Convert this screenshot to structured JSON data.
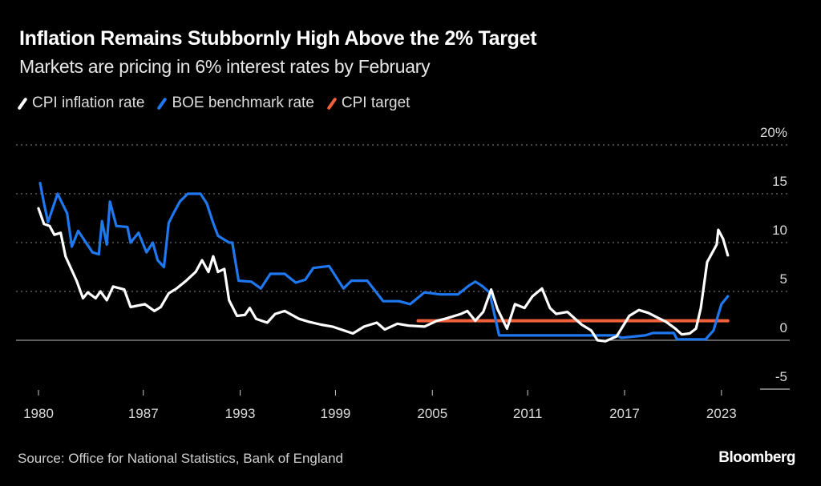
{
  "title": "Inflation Remains Stubbornly High Above the 2% Target",
  "subtitle": "Markets are pricing in 6% interest rates by February",
  "source": "Source: Office for National Statistics, Bank of England",
  "brand": "Bloomberg",
  "colors": {
    "cpi": "#ffffff",
    "boe": "#1f78f0",
    "target": "#f0603a",
    "background": "#000000",
    "grid": "#8a8a8a"
  },
  "chart_data": {
    "type": "line",
    "title": "Inflation Remains Stubbornly High Above the 2% Target",
    "subtitle": "Markets are pricing in 6% interest rates by February",
    "xlabel": "",
    "ylabel": "",
    "xlim": [
      1979.8,
      2023.6
    ],
    "ylim": [
      -5,
      20
    ],
    "grid": true,
    "legend_position": "top-left",
    "x_ticks": [
      {
        "value": 1980,
        "label": "1980"
      },
      {
        "value": 1986.6,
        "label": "1987"
      },
      {
        "value": 1992.7,
        "label": "1993"
      },
      {
        "value": 1998.7,
        "label": "1999"
      },
      {
        "value": 2004.8,
        "label": "2005"
      },
      {
        "value": 2010.8,
        "label": "2011"
      },
      {
        "value": 2016.9,
        "label": "2017"
      },
      {
        "value": 2023,
        "label": "2023"
      }
    ],
    "y_ticks": [
      {
        "value": 20,
        "label": "20%"
      },
      {
        "value": 15,
        "label": "15"
      },
      {
        "value": 10,
        "label": "10"
      },
      {
        "value": 5,
        "label": "5"
      },
      {
        "value": 0,
        "label": "0"
      },
      {
        "value": -5,
        "label": "-5"
      }
    ],
    "series": [
      {
        "name": "CPI inflation rate",
        "color": "#ffffff",
        "points": [
          [
            1980.0,
            13.5
          ],
          [
            1980.35,
            11.9
          ],
          [
            1980.7,
            11.7
          ],
          [
            1981.0,
            10.8
          ],
          [
            1981.4,
            11
          ],
          [
            1981.7,
            8.6
          ],
          [
            1982.4,
            6.1
          ],
          [
            1982.8,
            4.3
          ],
          [
            1983.1,
            4.9
          ],
          [
            1983.6,
            4.3
          ],
          [
            1983.9,
            5
          ],
          [
            1984.3,
            4.1
          ],
          [
            1984.7,
            5.5
          ],
          [
            1985.4,
            5.2
          ],
          [
            1985.8,
            3.4
          ],
          [
            1986.7,
            3.7
          ],
          [
            1987.3,
            3
          ],
          [
            1987.7,
            3.4
          ],
          [
            1988.2,
            4.8
          ],
          [
            1988.7,
            5.3
          ],
          [
            1989.3,
            6.1
          ],
          [
            1989.9,
            7
          ],
          [
            1990.3,
            8.2
          ],
          [
            1990.7,
            7
          ],
          [
            1991.0,
            8.6
          ],
          [
            1991.3,
            7
          ],
          [
            1991.7,
            7.3
          ],
          [
            1992.0,
            4.1
          ],
          [
            1992.5,
            2.5
          ],
          [
            1993.0,
            2.6
          ],
          [
            1993.3,
            3.3
          ],
          [
            1993.7,
            2.2
          ],
          [
            1994.4,
            1.8
          ],
          [
            1994.9,
            2.7
          ],
          [
            1995.5,
            3
          ],
          [
            1996.4,
            2.2
          ],
          [
            1997.0,
            1.9
          ],
          [
            1997.8,
            1.6
          ],
          [
            1998.5,
            1.4
          ],
          [
            1999.8,
            0.7
          ],
          [
            2000.5,
            1.4
          ],
          [
            2001.3,
            1.8
          ],
          [
            2001.8,
            1.1
          ],
          [
            2002.6,
            1.7
          ],
          [
            2003.3,
            1.5
          ],
          [
            2004.3,
            1.4
          ],
          [
            2005.1,
            2
          ],
          [
            2005.6,
            2.2
          ],
          [
            2006.6,
            2.7
          ],
          [
            2007.0,
            3
          ],
          [
            2007.5,
            2
          ],
          [
            2008.0,
            2.9
          ],
          [
            2008.5,
            5.2
          ],
          [
            2008.9,
            3.2
          ],
          [
            2009.5,
            1.2
          ],
          [
            2010.0,
            3.7
          ],
          [
            2010.6,
            3.3
          ],
          [
            2011.1,
            4.5
          ],
          [
            2011.7,
            5.3
          ],
          [
            2012.2,
            3.3
          ],
          [
            2012.6,
            2.7
          ],
          [
            2013.3,
            2.9
          ],
          [
            2014.2,
            1.6
          ],
          [
            2014.8,
            1
          ],
          [
            2015.2,
            0
          ],
          [
            2015.7,
            -0.1
          ],
          [
            2016.4,
            0.4
          ],
          [
            2017.2,
            2.5
          ],
          [
            2017.8,
            3.1
          ],
          [
            2018.4,
            2.8
          ],
          [
            2019.0,
            2.3
          ],
          [
            2019.5,
            1.9
          ],
          [
            2020.1,
            1.2
          ],
          [
            2020.5,
            0.6
          ],
          [
            2021.0,
            0.7
          ],
          [
            2021.4,
            1.2
          ],
          [
            2021.7,
            3.3
          ],
          [
            2022.1,
            8
          ],
          [
            2022.7,
            9.8
          ],
          [
            2022.8,
            11.3
          ],
          [
            2023.1,
            10.4
          ],
          [
            2023.4,
            8.7
          ]
        ]
      },
      {
        "name": "BOE benchmark rate",
        "color": "#1f78f0",
        "points": [
          [
            1980.1,
            16.1
          ],
          [
            1980.35,
            14
          ],
          [
            1980.6,
            12.1
          ],
          [
            1981.2,
            15
          ],
          [
            1981.8,
            13
          ],
          [
            1982.1,
            9.6
          ],
          [
            1982.5,
            11.2
          ],
          [
            1983.4,
            9
          ],
          [
            1983.8,
            8.8
          ],
          [
            1984.0,
            12.2
          ],
          [
            1984.3,
            9.8
          ],
          [
            1984.5,
            14.2
          ],
          [
            1984.9,
            11.7
          ],
          [
            1985.6,
            11.6
          ],
          [
            1985.8,
            10
          ],
          [
            1986.3,
            11
          ],
          [
            1986.8,
            9
          ],
          [
            1987.2,
            10
          ],
          [
            1987.5,
            8.2
          ],
          [
            1987.9,
            7.5
          ],
          [
            1988.2,
            12
          ],
          [
            1988.5,
            13
          ],
          [
            1988.9,
            14.2
          ],
          [
            1989.4,
            15
          ],
          [
            1990.2,
            15
          ],
          [
            1990.6,
            14
          ],
          [
            1991.0,
            12
          ],
          [
            1991.3,
            10.7
          ],
          [
            1992.0,
            10
          ],
          [
            1992.2,
            10
          ],
          [
            1992.6,
            6.1
          ],
          [
            1993.4,
            6
          ],
          [
            1994.0,
            5.3
          ],
          [
            1994.6,
            6.8
          ],
          [
            1995.5,
            6.8
          ],
          [
            1996.2,
            5.9
          ],
          [
            1996.8,
            6.2
          ],
          [
            1997.3,
            7.4
          ],
          [
            1998.3,
            7.6
          ],
          [
            1999.2,
            5.3
          ],
          [
            1999.7,
            6.1
          ],
          [
            2000.7,
            6.1
          ],
          [
            2001.7,
            4
          ],
          [
            2002.7,
            4
          ],
          [
            2003.4,
            3.7
          ],
          [
            2004.3,
            4.9
          ],
          [
            2005.3,
            4.7
          ],
          [
            2006.4,
            4.7
          ],
          [
            2007.1,
            5.6
          ],
          [
            2007.5,
            6
          ],
          [
            2007.9,
            5.6
          ],
          [
            2008.4,
            4.9
          ],
          [
            2009.0,
            0.5
          ],
          [
            2016.4,
            0.5
          ],
          [
            2016.7,
            0.25
          ],
          [
            2018.2,
            0.5
          ],
          [
            2018.7,
            0.75
          ],
          [
            2020.0,
            0.75
          ],
          [
            2020.2,
            0.1
          ],
          [
            2022.0,
            0.1
          ],
          [
            2022.5,
            1
          ],
          [
            2023.0,
            3.7
          ],
          [
            2023.4,
            4.5
          ]
        ]
      },
      {
        "name": "CPI target",
        "color": "#f0603a",
        "points": [
          [
            2003.9,
            2
          ],
          [
            2023.4,
            2
          ]
        ]
      }
    ]
  }
}
